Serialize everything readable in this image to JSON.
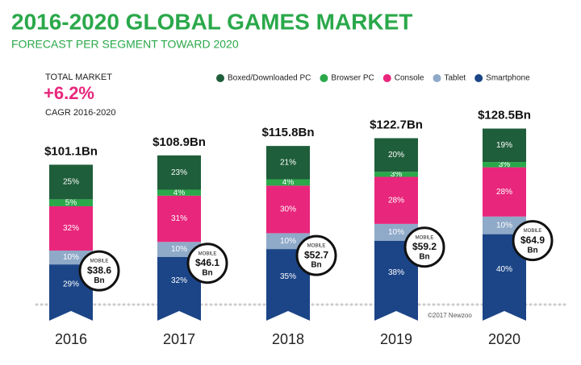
{
  "chart_data": {
    "type": "bar",
    "stacked": true,
    "title": "2016-2020 GLOBAL GAMES MARKET",
    "subtitle": "FORECAST PER SEGMENT TOWARD 2020",
    "annotations": {
      "total_market": "TOTAL MARKET",
      "cagr_value": "+6.2%",
      "cagr_label": "CAGR 2016-2020",
      "credit": "©2017 Newzoo"
    },
    "categories": [
      "2016",
      "2017",
      "2018",
      "2019",
      "2020"
    ],
    "series": [
      {
        "name": "Boxed/Downloaded PC",
        "color": "#1f5e3a",
        "values": [
          25,
          23,
          21,
          20,
          19
        ],
        "value_labels": [
          "25%",
          "23%",
          "21%",
          "20%",
          "19%"
        ]
      },
      {
        "name": "Browser PC",
        "color": "#2aa84a",
        "values": [
          5,
          4,
          4,
          3,
          3
        ],
        "value_labels": [
          "5%",
          "4%",
          "4%",
          "3%",
          "3%"
        ]
      },
      {
        "name": "Console",
        "color": "#e8267c",
        "values": [
          32,
          31,
          30,
          28,
          28
        ],
        "value_labels": [
          "32%",
          "31%",
          "30%",
          "28%",
          "28%"
        ]
      },
      {
        "name": "Tablet",
        "color": "#8fa9c8",
        "values": [
          10,
          10,
          10,
          10,
          10
        ],
        "value_labels": [
          "10%",
          "10%",
          "10%",
          "10%",
          "10%"
        ]
      },
      {
        "name": "Smartphone",
        "color": "#1c4587",
        "values": [
          29,
          32,
          35,
          38,
          40
        ],
        "value_labels": [
          "29%",
          "32%",
          "35%",
          "38%",
          "40%"
        ]
      }
    ],
    "totals": {
      "values": [
        101.1,
        108.9,
        115.8,
        122.7,
        128.5
      ],
      "value_labels": [
        "$101.1Bn",
        "$108.9Bn",
        "$115.8Bn",
        "$122.7Bn",
        "$128.5Bn"
      ]
    },
    "mobile": {
      "label": "MOBILE",
      "unit": "Bn",
      "values": [
        38.6,
        46.1,
        52.7,
        59.2,
        64.9
      ],
      "value_labels": [
        "$38.6",
        "$46.1",
        "$52.7",
        "$59.2",
        "$64.9"
      ]
    }
  }
}
